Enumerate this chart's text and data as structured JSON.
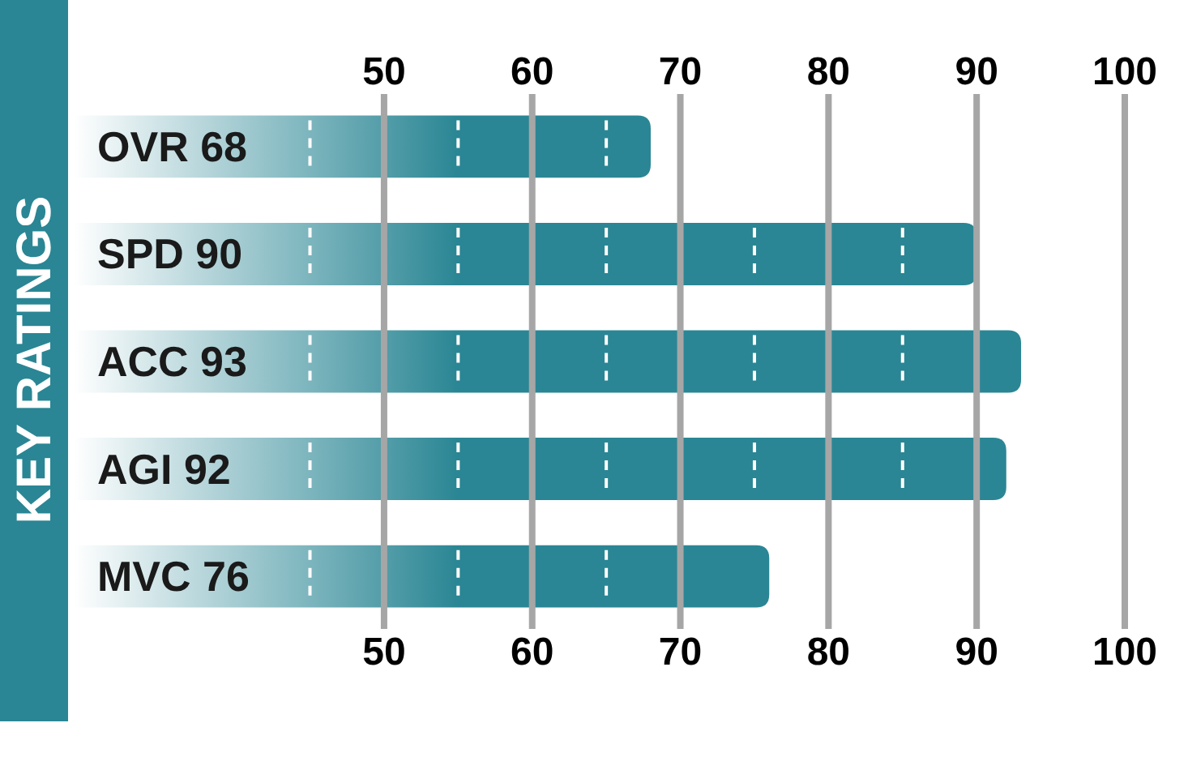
{
  "chart_data": {
    "type": "bar",
    "orientation": "horizontal",
    "title": "KEY RATINGS",
    "categories": [
      "OVR 68",
      "SPD 90",
      "ACC 93",
      "AGI 92",
      "MVC 76"
    ],
    "values": [
      68,
      90,
      93,
      92,
      76
    ],
    "color": "#2a8694",
    "xlim": [
      29,
      100
    ],
    "xticks": [
      50,
      60,
      70,
      80,
      90,
      100
    ],
    "x2lim": [
      29,
      100
    ],
    "x2ticks": [
      50,
      60,
      70,
      80,
      90,
      100
    ],
    "grid": "x"
  }
}
